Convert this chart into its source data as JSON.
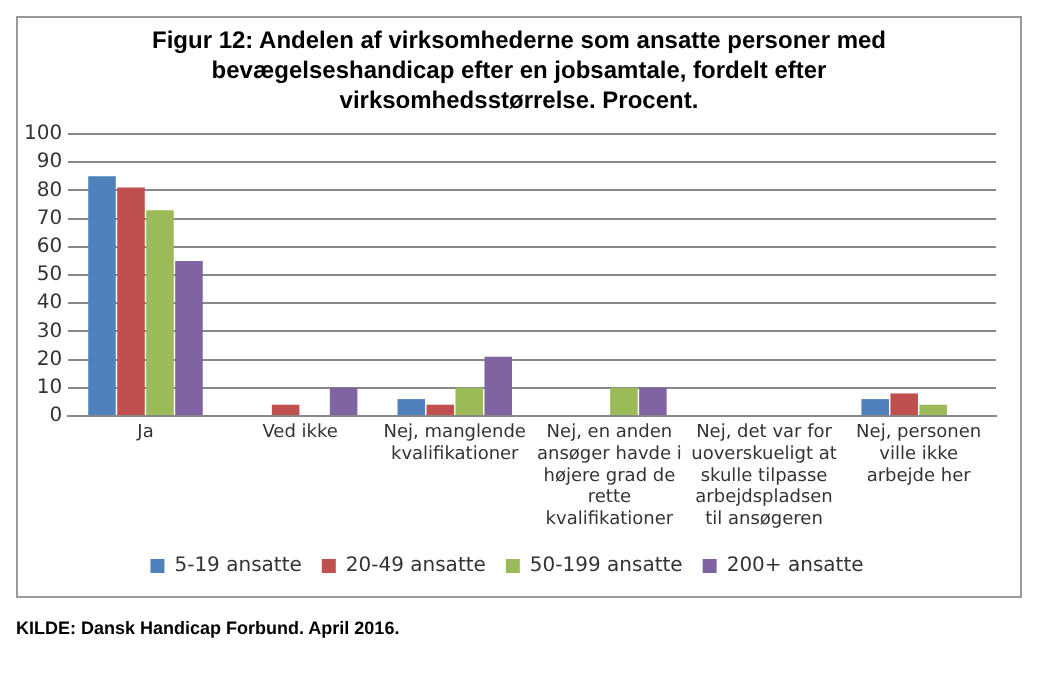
{
  "chart_data": {
    "type": "bar",
    "title": "Figur 12: Andelen af virksomhederne som ansatte personer med bevægelseshandicap efter en jobsamtale, fordelt efter virksomhedsstørrelse. Procent.",
    "categories": [
      "Ja",
      "Ved ikke",
      "Nej, manglende kvalifikationer",
      "Nej, en anden ansøger havde i højere grad de rette kvalifikationer",
      "Nej, det var for uoverskueligt at skulle tilpasse arbejdspladsen til ansøgeren",
      "Nej, personen ville ikke arbejde her"
    ],
    "series": [
      {
        "name": "5-19 ansatte",
        "color": "#4f81bd",
        "values": [
          85,
          0,
          6,
          0,
          0,
          6
        ]
      },
      {
        "name": "20-49 ansatte",
        "color": "#c0504d",
        "values": [
          81,
          4,
          4,
          0,
          0,
          8
        ]
      },
      {
        "name": "50-199 ansatte",
        "color": "#9bbb59",
        "values": [
          73,
          0,
          10,
          10,
          0,
          4
        ]
      },
      {
        "name": "200+ ansatte",
        "color": "#8064a2",
        "values": [
          55,
          10,
          21,
          10,
          0,
          0
        ]
      }
    ],
    "ylim": [
      0,
      100
    ],
    "yticks": [
      0,
      10,
      20,
      30,
      40,
      50,
      60,
      70,
      80,
      90,
      100
    ],
    "grid": "y",
    "legend": "bottom",
    "annotations": [
      "KILDE: Dansk Handicap Forbund. April 2016."
    ]
  }
}
